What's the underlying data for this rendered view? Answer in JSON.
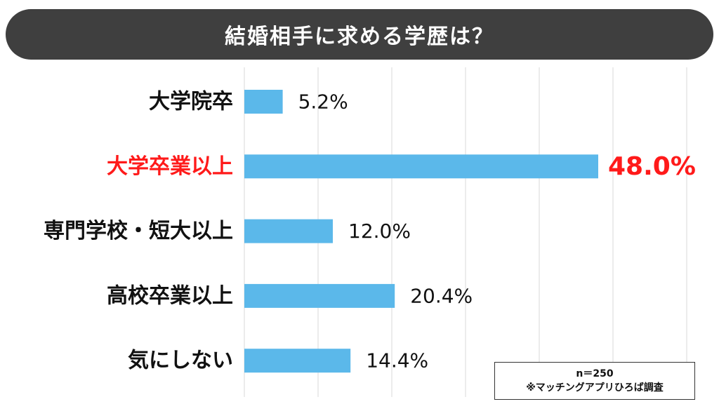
{
  "title": "結婚相手に求める学歴は？",
  "note": {
    "sample": "n＝250",
    "source": "※マッチングアプリひろば調査"
  },
  "colors": {
    "bar": "#5bb8ea",
    "highlight": "#ff1a1a",
    "banner": "#3f3f3f",
    "text": "#111111",
    "grid": "#d9d9d9"
  },
  "chart_data": {
    "type": "bar",
    "orientation": "horizontal",
    "title": "結婚相手に求める学歴は？",
    "categories": [
      "大学院卒",
      "大学卒業以上",
      "専門学校・短大以上",
      "高校卒業以上",
      "気にしない"
    ],
    "values": [
      5.2,
      48.0,
      12.0,
      20.4,
      14.4
    ],
    "data_labels": [
      "5.2%",
      "48.0%",
      "12.0%",
      "20.4%",
      "14.4%"
    ],
    "highlight_index": 1,
    "xlim": [
      0,
      60
    ],
    "grid": true,
    "unit": "%"
  }
}
